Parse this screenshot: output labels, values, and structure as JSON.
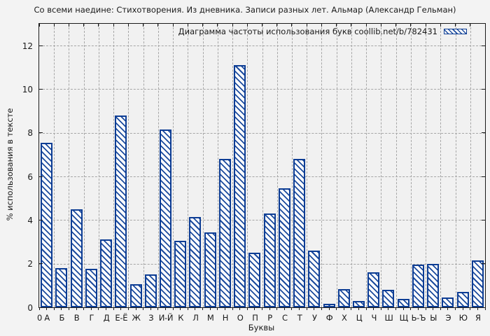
{
  "title": "Со всеми наедине: Стихотворения. Из дневника. Записи разных лет. Альмар (Александр Гельман)",
  "legend": {
    "label": "Диаграмма частоты использования букв coollib.net/b/782431",
    "swatch_icon": "hatched-bar-swatch"
  },
  "chart_data": {
    "type": "bar",
    "title": "Со всеми наедине: Стихотворения. Из дневника. Записи разных лет. Альмар (Александр Гельман)",
    "categories": [
      "А",
      "Б",
      "В",
      "Г",
      "Д",
      "Е-Ё",
      "Ж",
      "З",
      "И-Й",
      "К",
      "Л",
      "М",
      "Н",
      "О",
      "П",
      "Р",
      "С",
      "Т",
      "У",
      "Ф",
      "Х",
      "Ц",
      "Ч",
      "Ш",
      "Щ",
      "Ь-Ъ",
      "Ы",
      "Э",
      "Ю",
      "Я"
    ],
    "values": [
      7.55,
      1.8,
      4.5,
      1.75,
      3.1,
      8.8,
      1.05,
      1.5,
      8.15,
      3.05,
      4.15,
      3.45,
      6.8,
      11.1,
      2.5,
      4.3,
      5.45,
      6.8,
      2.6,
      0.15,
      0.85,
      0.3,
      1.6,
      0.8,
      0.4,
      1.95,
      2.0,
      0.45,
      0.7,
      2.15
    ],
    "xlabel": "Буквы",
    "ylabel": "% использования в тексте",
    "ylim": [
      0,
      13
    ],
    "yticks": [
      0,
      2,
      4,
      6,
      8,
      10,
      12
    ],
    "x_origin_tick_label": "0",
    "grid": true,
    "legend_position": "top-right",
    "legend_label": "Диаграмма частоты использования букв coollib.net/b/782431"
  },
  "colors": {
    "bar_border": "#0d3d94",
    "bar_hatch": "#1c4b9e",
    "bar_fill": "#fdfdfd",
    "grid": "#a6a6a6",
    "axis": "#1a1a1a",
    "background": "#f3f3f3",
    "text": "#1a1a1a"
  }
}
